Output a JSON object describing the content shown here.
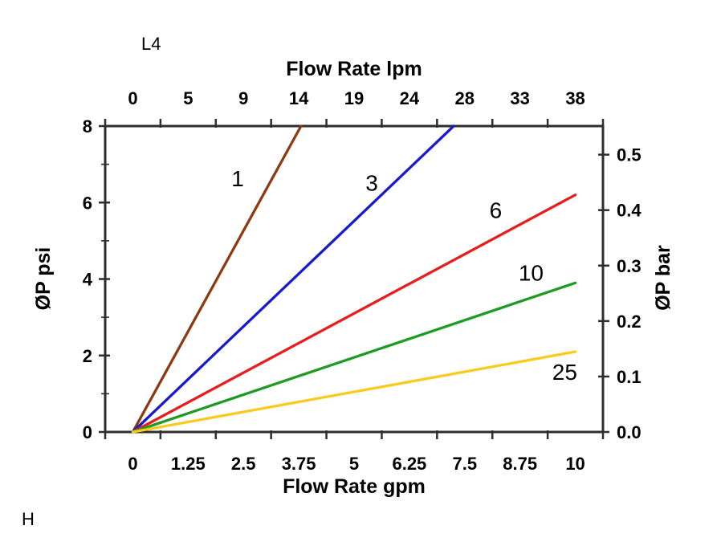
{
  "page": {
    "background": "#ffffff"
  },
  "annotations": {
    "top_left_label": "L4",
    "bottom_left_label": "H"
  },
  "chart_data": {
    "type": "line",
    "title": "",
    "grid": false,
    "legend": "inline-labels-on-lines",
    "x_axis_bottom": {
      "title": "Flow Rate gpm",
      "tick_labels": [
        "0",
        "1.25",
        "2.5",
        "3.75",
        "5",
        "6.25",
        "7.5",
        "8.75",
        "10"
      ],
      "range_gpm": [
        0,
        10
      ]
    },
    "x_axis_top": {
      "title": "Flow Rate lpm",
      "tick_labels": [
        "0",
        "5",
        "9",
        "14",
        "19",
        "24",
        "28",
        "33",
        "38"
      ],
      "range_lpm": [
        0,
        38
      ]
    },
    "y_axis_left": {
      "title": "ØP psi",
      "tick_values": [
        0,
        2,
        4,
        6,
        8
      ],
      "minor_tick_values": [
        1,
        3,
        5,
        7
      ],
      "range_psi": [
        0,
        8
      ]
    },
    "y_axis_right": {
      "title": "ØP bar",
      "tick_labels": [
        "0.0",
        "0.1",
        "0.2",
        "0.3",
        "0.4",
        "0.5"
      ],
      "bar_per_psi": 0.0689476,
      "range_bar": [
        0,
        0.55
      ]
    },
    "series": [
      {
        "name": "1",
        "color": "#8C3A10",
        "points_gpm_psi": [
          [
            0,
            0
          ],
          [
            3.8,
            8.0
          ]
        ],
        "label_at_gpm_psi": [
          2.37,
          6.61
        ]
      },
      {
        "name": "3",
        "color": "#1A1ACD",
        "points_gpm_psi": [
          [
            0,
            0
          ],
          [
            7.25,
            8.0
          ]
        ],
        "label_at_gpm_psi": [
          5.4,
          6.5
        ]
      },
      {
        "name": "6",
        "color": "#E61E1E",
        "points_gpm_psi": [
          [
            0,
            0
          ],
          [
            10,
            6.2
          ]
        ],
        "label_at_gpm_psi": [
          8.2,
          5.78
        ]
      },
      {
        "name": "10",
        "color": "#1E9B23",
        "points_gpm_psi": [
          [
            0,
            0
          ],
          [
            10,
            3.9
          ]
        ],
        "label_at_gpm_psi": [
          9.0,
          4.15
        ]
      },
      {
        "name": "25",
        "color": "#F8CB1E",
        "points_gpm_psi": [
          [
            0,
            0
          ],
          [
            10,
            2.1
          ]
        ],
        "label_at_gpm_psi": [
          9.76,
          1.55
        ]
      }
    ],
    "axis_color": "#2d2d2d",
    "text_color": "#000000"
  }
}
